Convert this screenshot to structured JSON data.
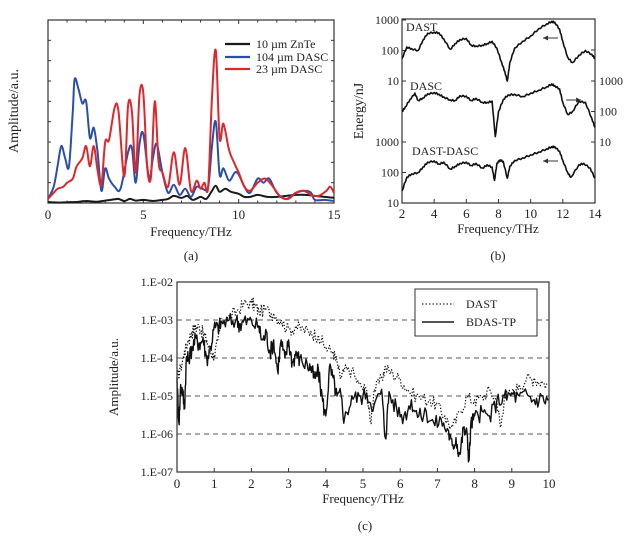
{
  "chart_data": [
    {
      "id": "a",
      "type": "line",
      "caption": "(a)",
      "xlabel": "Frequency/THz",
      "ylabel": "Amplitude/a.u.",
      "xlim": [
        0,
        15
      ],
      "ylim": [
        0,
        9
      ],
      "xticks": [
        0,
        5,
        10,
        15
      ],
      "legend_position": "top-right",
      "series": [
        {
          "name": "10 µm ZnTe",
          "color": "#1a1a1a",
          "x": [
            0,
            0.3,
            0.6,
            1,
            1.5,
            2,
            2.5,
            3,
            3.5,
            3.7,
            4,
            4.3,
            4.6,
            5,
            5.5,
            6,
            6.3,
            6.6,
            7,
            7.3,
            7.6,
            8,
            8.3,
            8.6,
            8.8,
            9,
            9.3,
            9.6,
            10,
            10.3,
            10.6,
            11,
            11.5,
            12,
            12.5,
            13,
            13.5,
            14,
            14.5,
            15
          ],
          "y": [
            0.05,
            0.03,
            0.02,
            0.04,
            0.05,
            0.1,
            0.06,
            0.12,
            0.18,
            0.2,
            0.1,
            0.2,
            0.12,
            0.15,
            0.1,
            0.15,
            0.2,
            0.35,
            0.25,
            0.35,
            0.15,
            0.3,
            0.2,
            0.6,
            0.85,
            0.55,
            0.7,
            0.55,
            0.45,
            0.3,
            0.3,
            0.4,
            0.3,
            0.3,
            0.35,
            0.4,
            0.4,
            0.35,
            0.3,
            0.25
          ]
        },
        {
          "name": "104 µm DASC",
          "color": "#2b4fa8",
          "x": [
            0,
            0.3,
            0.5,
            0.7,
            0.9,
            1.1,
            1.3,
            1.4,
            1.6,
            1.8,
            2,
            2.2,
            2.4,
            2.6,
            2.8,
            3,
            3.2,
            3.5,
            3.8,
            4.2,
            4.4,
            4.6,
            4.8,
            5,
            5.3,
            5.5,
            5.7,
            6,
            6.3,
            6.6,
            6.9,
            7.2,
            7.5,
            7.8,
            8.1,
            8.4,
            8.6,
            8.8,
            9,
            9.2,
            9.5,
            9.8,
            10,
            10.3,
            10.6,
            11,
            11.3,
            11.6,
            12,
            12.5,
            13,
            13.5,
            13.8,
            14,
            14.5,
            15
          ],
          "y": [
            0.2,
            0.8,
            1.8,
            2.8,
            2.2,
            1.8,
            4.5,
            6.1,
            5.6,
            4.9,
            5.0,
            3.2,
            3.7,
            2.5,
            0.6,
            1.7,
            1.2,
            0.8,
            0.7,
            2.5,
            2.7,
            1.0,
            2.9,
            3.4,
            1.2,
            2.2,
            2.9,
            1.5,
            0.5,
            0.9,
            0.4,
            0.7,
            0.3,
            0.8,
            0.7,
            0.8,
            2.8,
            4.0,
            1.4,
            1.7,
            1.1,
            1.5,
            1.4,
            0.8,
            0.5,
            1.2,
            1.0,
            1.2,
            0.5,
            0.2,
            0.5,
            0.6,
            0.5,
            0.15,
            0.15,
            0.1
          ]
        },
        {
          "name": "23 µm DASC",
          "color": "#e0262b",
          "x": [
            0,
            0.3,
            0.5,
            0.8,
            1,
            1.3,
            1.5,
            1.8,
            2,
            2.2,
            2.4,
            2.6,
            2.8,
            3,
            3.2,
            3.5,
            3.7,
            4,
            4.2,
            4.4,
            4.6,
            4.8,
            5,
            5.2,
            5.4,
            5.6,
            5.8,
            6,
            6.3,
            6.6,
            6.9,
            7.2,
            7.5,
            7.8,
            8,
            8.2,
            8.4,
            8.6,
            8.8,
            9,
            9.2,
            9.5,
            9.8,
            10,
            10.3,
            10.6,
            11,
            11.4,
            11.8,
            12.2,
            12.6,
            13,
            13.4,
            13.8,
            14.2,
            14.6,
            14.8,
            15
          ],
          "y": [
            0.2,
            0.5,
            0.7,
            0.8,
            1.0,
            1.2,
            1.8,
            2.2,
            2.8,
            1.8,
            2.8,
            1.6,
            0.9,
            3.0,
            3.1,
            4.7,
            4.5,
            1.3,
            4.8,
            4.5,
            1.5,
            5.3,
            5.4,
            1.8,
            1.3,
            5.0,
            2.0,
            1.5,
            0.8,
            2.5,
            0.9,
            2.7,
            0.6,
            1.1,
            0.7,
            1.0,
            0.8,
            5.2,
            7.5,
            3.2,
            3.9,
            2.6,
            1.9,
            1.5,
            0.8,
            0.6,
            1.0,
            1.2,
            0.8,
            0.3,
            0.2,
            0.5,
            0.6,
            0.4,
            0.35,
            0.6,
            0.8,
            0.5
          ]
        }
      ]
    },
    {
      "id": "b",
      "type": "line",
      "caption": "(b)",
      "xlabel": "Frequency/THz",
      "ylabel": "Energy/nJ",
      "xlim": [
        2,
        14
      ],
      "xticks": [
        2,
        4,
        6,
        8,
        10,
        12,
        14
      ],
      "y_scale": "log",
      "left_ticks_upper": [
        "1000",
        "100",
        "10"
      ],
      "left_ticks_lower": [
        "1000",
        "100",
        "10"
      ],
      "right_ticks": [
        "1000",
        "100",
        "10"
      ],
      "series": [
        {
          "name": "DAST",
          "axis": "left-upper",
          "arrow": "left",
          "x": [
            2,
            2.3,
            2.6,
            3,
            3.3,
            3.6,
            4,
            4.3,
            4.6,
            5,
            5.3,
            5.6,
            6,
            6.3,
            6.6,
            7,
            7.3,
            7.6,
            7.9,
            8.2,
            8.4,
            8.55,
            8.7,
            9,
            9.5,
            10,
            10.5,
            11,
            11.3,
            11.5,
            11.8,
            12,
            12.3,
            12.6,
            13,
            13.4,
            13.8,
            14
          ],
          "y": [
            55,
            130,
            115,
            100,
            220,
            370,
            400,
            380,
            240,
            110,
            170,
            230,
            250,
            150,
            140,
            150,
            170,
            200,
            120,
            40,
            20,
            10,
            40,
            120,
            200,
            300,
            520,
            750,
            900,
            850,
            500,
            200,
            60,
            40,
            70,
            100,
            75,
            55
          ]
        },
        {
          "name": "DASC",
          "axis": "right",
          "arrow": "right",
          "x": [
            2,
            2.2,
            2.5,
            2.8,
            3,
            3.3,
            3.6,
            4,
            4.3,
            4.6,
            5,
            5.3,
            5.6,
            6,
            6.3,
            6.6,
            7,
            7.3,
            7.6,
            7.8,
            8,
            8.3,
            8.6,
            9,
            9.5,
            10,
            10.5,
            11,
            11.3,
            11.5,
            11.8,
            12,
            12.3,
            12.6,
            13,
            13.4,
            13.8,
            14
          ],
          "y": [
            100,
            140,
            250,
            400,
            230,
            280,
            380,
            420,
            370,
            300,
            240,
            230,
            330,
            320,
            230,
            270,
            200,
            200,
            220,
            15,
            100,
            250,
            350,
            370,
            310,
            400,
            500,
            650,
            800,
            700,
            550,
            200,
            80,
            100,
            220,
            200,
            60,
            30
          ]
        },
        {
          "name": "DAST-DASC",
          "axis": "left-lower",
          "arrow": "left",
          "x": [
            2,
            2.3,
            2.6,
            3,
            3.3,
            3.6,
            4,
            4.3,
            4.6,
            5,
            5.3,
            5.6,
            6,
            6.3,
            6.6,
            7,
            7.3,
            7.6,
            7.75,
            7.9,
            8.1,
            8.3,
            8.55,
            8.7,
            9,
            9.5,
            10,
            10.5,
            11,
            11.3,
            11.5,
            11.8,
            12,
            12.3,
            12.5,
            13,
            13.3,
            13.7,
            14
          ],
          "y": [
            25,
            70,
            90,
            100,
            150,
            220,
            240,
            190,
            220,
            130,
            160,
            200,
            220,
            170,
            200,
            140,
            180,
            150,
            55,
            200,
            260,
            230,
            65,
            160,
            250,
            300,
            380,
            470,
            600,
            700,
            700,
            500,
            250,
            100,
            70,
            180,
            200,
            140,
            65
          ]
        }
      ]
    },
    {
      "id": "c",
      "type": "line",
      "caption": "(c)",
      "xlabel": "Frequency/THz",
      "ylabel": "Amplitude/a.u.",
      "xlim": [
        0,
        10
      ],
      "ylim": [
        1e-07,
        0.01
      ],
      "y_scale": "log",
      "xticks": [
        0,
        1,
        2,
        3,
        4,
        5,
        6,
        7,
        8,
        9,
        10
      ],
      "yticks": [
        "1.E-02",
        "1.E-03",
        "1.E-04",
        "1.E-05",
        "1.E-06",
        "1.E-07"
      ],
      "grid": "horizontal-dashed",
      "legend_position": "top-right",
      "series": [
        {
          "name": "DAST",
          "style": "dotted",
          "x": [
            0,
            0.1,
            0.2,
            0.3,
            0.4,
            0.5,
            0.6,
            0.7,
            0.8,
            0.9,
            1.0,
            1.1,
            1.2,
            1.4,
            1.6,
            1.8,
            2.0,
            2.1,
            2.2,
            2.4,
            2.6,
            2.8,
            3.0,
            3.2,
            3.4,
            3.6,
            3.8,
            4.0,
            4.2,
            4.3,
            4.4,
            4.5,
            4.7,
            4.9,
            5.1,
            5.2,
            5.3,
            5.5,
            5.6,
            5.8,
            6.0,
            6.2,
            6.5,
            6.8,
            7.0,
            7.2,
            7.4,
            7.6,
            7.8,
            8.0,
            8.2,
            8.4,
            8.6,
            8.7,
            8.8,
            9.0,
            9.2,
            9.4,
            9.6,
            9.8,
            10
          ],
          "y": [
            3e-05,
            6e-05,
            0.00015,
            0.0003,
            0.0005,
            0.0007,
            0.0007,
            0.0005,
            0.0003,
            0.00015,
            0.00012,
            0.0003,
            0.001,
            0.0013,
            0.0018,
            0.0028,
            0.003,
            0.0025,
            0.0018,
            0.002,
            0.0015,
            0.001,
            0.0006,
            0.0007,
            0.0006,
            0.0005,
            0.0004,
            0.0002,
            0.00015,
            8e-05,
            3e-05,
            5e-05,
            5e-05,
            2e-05,
            1.5e-05,
            2e-06,
            1.5e-05,
            3e-05,
            6e-05,
            4e-05,
            3e-05,
            1.5e-05,
            1e-05,
            8e-06,
            6e-06,
            3e-06,
            1.5e-06,
            4e-06,
            1e-05,
            8e-06,
            1e-05,
            1.5e-05,
            8e-06,
            1.5e-06,
            1e-05,
            1.2e-05,
            2e-05,
            3e-05,
            3e-05,
            2.5e-05,
            2e-05
          ]
        },
        {
          "name": "BDAS-TP",
          "style": "solid",
          "x": [
            0,
            0.05,
            0.1,
            0.15,
            0.2,
            0.25,
            0.3,
            0.4,
            0.5,
            0.6,
            0.7,
            0.8,
            0.9,
            1.0,
            1.1,
            1.2,
            1.4,
            1.6,
            1.7,
            1.8,
            2.0,
            2.2,
            2.3,
            2.4,
            2.5,
            2.6,
            2.7,
            2.8,
            2.9,
            3.0,
            3.1,
            3.2,
            3.3,
            3.5,
            3.6,
            3.7,
            3.8,
            3.9,
            4.0,
            4.1,
            4.2,
            4.3,
            4.4,
            4.5,
            4.7,
            4.9,
            5.1,
            5.3,
            5.5,
            5.6,
            5.7,
            5.9,
            6.1,
            6.3,
            6.5,
            6.7,
            6.9,
            7.1,
            7.3,
            7.4,
            7.5,
            7.6,
            7.7,
            7.8,
            7.85,
            7.9,
            8.0,
            8.2,
            8.4,
            8.6,
            8.8,
            9.0,
            9.2,
            9.4,
            9.6,
            9.8,
            10
          ],
          "y": [
            3e-05,
            2e-06,
            2e-05,
            1.5e-05,
            5e-06,
            0.0001,
            0.0001,
            0.0002,
            0.00035,
            0.00025,
            0.00035,
            0.0001,
            0.0002,
            0.0007,
            0.0007,
            0.0009,
            0.001,
            0.0011,
            0.0008,
            0.001,
            0.001,
            0.0007,
            0.0003,
            0.0005,
            0.00015,
            0.0003,
            5e-05,
            0.0003,
            0.0001,
            0.0003,
            8e-05,
            0.00015,
            0.0001,
            7e-05,
            6e-05,
            3e-05,
            5e-05,
            1e-05,
            3e-06,
            6e-05,
            3e-05,
            1e-05,
            1.2e-05,
            2.5e-06,
            1e-05,
            1e-05,
            1.2e-05,
            6e-06,
            1.5e-05,
            8e-07,
            1.3e-05,
            5e-06,
            3e-06,
            8e-06,
            3e-06,
            4e-06,
            2e-06,
            2.5e-06,
            1.2e-06,
            5e-07,
            8e-07,
            3e-07,
            1.5e-06,
            1e-06,
            2e-07,
            2e-06,
            3e-06,
            4e-06,
            3e-06,
            8e-06,
            1e-05,
            1.2e-05,
            1e-05,
            1.2e-05,
            8e-06,
            1e-05,
            8e-06
          ]
        }
      ]
    }
  ],
  "panels": {
    "a": {
      "caption": "(a)",
      "xlabel": "Frequency/THz",
      "ylabel": "Amplitude/a.u.",
      "legend": [
        "10 µm ZnTe",
        "104 µm DASC",
        "23 µm DASC"
      ]
    },
    "b": {
      "caption": "(b)",
      "xlabel": "Frequency/THz",
      "ylabel": "Energy/nJ",
      "labels": [
        "DAST",
        "DASC",
        "DAST-DASC"
      ]
    },
    "c": {
      "caption": "(c)",
      "xlabel": "Frequency/THz",
      "ylabel": "Amplitude/a.u.",
      "legend": [
        "DAST",
        "BDAS-TP"
      ]
    }
  }
}
